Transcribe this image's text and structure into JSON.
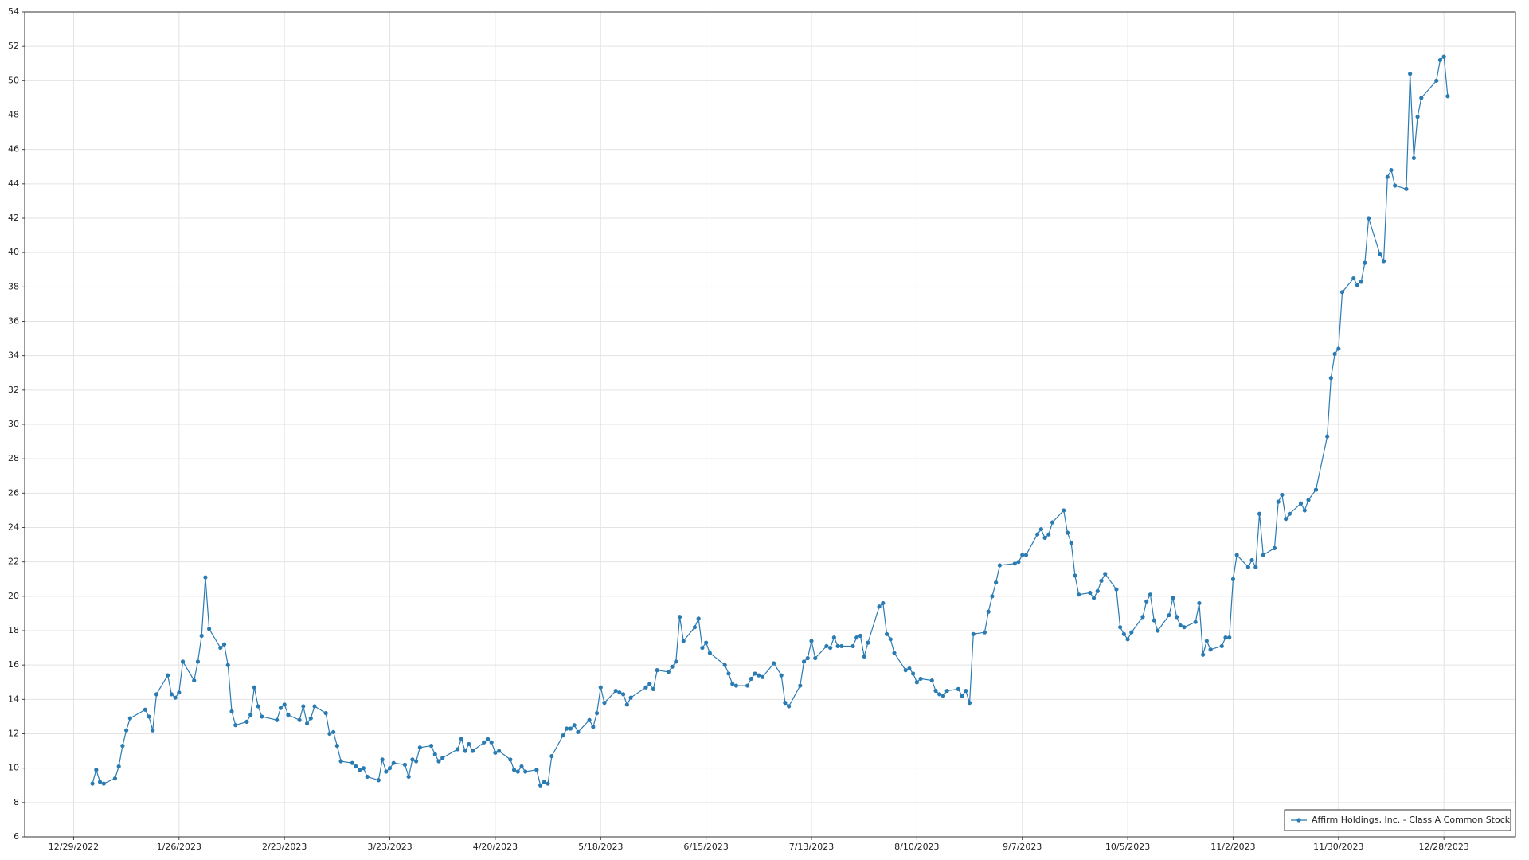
{
  "chart_data": {
    "type": "line",
    "x": [
      "2023-01-03",
      "2023-01-04",
      "2023-01-05",
      "2023-01-06",
      "2023-01-09",
      "2023-01-10",
      "2023-01-11",
      "2023-01-12",
      "2023-01-13",
      "2023-01-17",
      "2023-01-18",
      "2023-01-19",
      "2023-01-20",
      "2023-01-23",
      "2023-01-24",
      "2023-01-25",
      "2023-01-26",
      "2023-01-27",
      "2023-01-30",
      "2023-01-31",
      "2023-02-01",
      "2023-02-02",
      "2023-02-03",
      "2023-02-06",
      "2023-02-07",
      "2023-02-08",
      "2023-02-09",
      "2023-02-10",
      "2023-02-13",
      "2023-02-14",
      "2023-02-15",
      "2023-02-16",
      "2023-02-17",
      "2023-02-21",
      "2023-02-22",
      "2023-02-23",
      "2023-02-24",
      "2023-02-27",
      "2023-02-28",
      "2023-03-01",
      "2023-03-02",
      "2023-03-03",
      "2023-03-06",
      "2023-03-07",
      "2023-03-08",
      "2023-03-09",
      "2023-03-10",
      "2023-03-13",
      "2023-03-14",
      "2023-03-15",
      "2023-03-16",
      "2023-03-17",
      "2023-03-20",
      "2023-03-21",
      "2023-03-22",
      "2023-03-23",
      "2023-03-24",
      "2023-03-27",
      "2023-03-28",
      "2023-03-29",
      "2023-03-30",
      "2023-03-31",
      "2023-04-03",
      "2023-04-04",
      "2023-04-05",
      "2023-04-06",
      "2023-04-10",
      "2023-04-11",
      "2023-04-12",
      "2023-04-13",
      "2023-04-14",
      "2023-04-17",
      "2023-04-18",
      "2023-04-19",
      "2023-04-20",
      "2023-04-21",
      "2023-04-24",
      "2023-04-25",
      "2023-04-26",
      "2023-04-27",
      "2023-04-28",
      "2023-05-01",
      "2023-05-02",
      "2023-05-03",
      "2023-05-04",
      "2023-05-05",
      "2023-05-08",
      "2023-05-09",
      "2023-05-10",
      "2023-05-11",
      "2023-05-12",
      "2023-05-15",
      "2023-05-16",
      "2023-05-17",
      "2023-05-18",
      "2023-05-19",
      "2023-05-22",
      "2023-05-23",
      "2023-05-24",
      "2023-05-25",
      "2023-05-26",
      "2023-05-30",
      "2023-05-31",
      "2023-06-01",
      "2023-06-02",
      "2023-06-05",
      "2023-06-06",
      "2023-06-07",
      "2023-06-08",
      "2023-06-09",
      "2023-06-12",
      "2023-06-13",
      "2023-06-14",
      "2023-06-15",
      "2023-06-16",
      "2023-06-20",
      "2023-06-21",
      "2023-06-22",
      "2023-06-23",
      "2023-06-26",
      "2023-06-27",
      "2023-06-28",
      "2023-06-29",
      "2023-06-30",
      "2023-07-03",
      "2023-07-05",
      "2023-07-06",
      "2023-07-07",
      "2023-07-10",
      "2023-07-11",
      "2023-07-12",
      "2023-07-13",
      "2023-07-14",
      "2023-07-17",
      "2023-07-18",
      "2023-07-19",
      "2023-07-20",
      "2023-07-21",
      "2023-07-24",
      "2023-07-25",
      "2023-07-26",
      "2023-07-27",
      "2023-07-28",
      "2023-07-31",
      "2023-08-01",
      "2023-08-02",
      "2023-08-03",
      "2023-08-04",
      "2023-08-07",
      "2023-08-08",
      "2023-08-09",
      "2023-08-10",
      "2023-08-11",
      "2023-08-14",
      "2023-08-15",
      "2023-08-16",
      "2023-08-17",
      "2023-08-18",
      "2023-08-21",
      "2023-08-22",
      "2023-08-23",
      "2023-08-24",
      "2023-08-25",
      "2023-08-28",
      "2023-08-29",
      "2023-08-30",
      "2023-08-31",
      "2023-09-01",
      "2023-09-05",
      "2023-09-06",
      "2023-09-07",
      "2023-09-08",
      "2023-09-11",
      "2023-09-12",
      "2023-09-13",
      "2023-09-14",
      "2023-09-15",
      "2023-09-18",
      "2023-09-19",
      "2023-09-20",
      "2023-09-21",
      "2023-09-22",
      "2023-09-25",
      "2023-09-26",
      "2023-09-27",
      "2023-09-28",
      "2023-09-29",
      "2023-10-02",
      "2023-10-03",
      "2023-10-04",
      "2023-10-05",
      "2023-10-06",
      "2023-10-09",
      "2023-10-10",
      "2023-10-11",
      "2023-10-12",
      "2023-10-13",
      "2023-10-16",
      "2023-10-17",
      "2023-10-18",
      "2023-10-19",
      "2023-10-20",
      "2023-10-23",
      "2023-10-24",
      "2023-10-25",
      "2023-10-26",
      "2023-10-27",
      "2023-10-30",
      "2023-10-31",
      "2023-11-01",
      "2023-11-02",
      "2023-11-03",
      "2023-11-06",
      "2023-11-07",
      "2023-11-08",
      "2023-11-09",
      "2023-11-10",
      "2023-11-13",
      "2023-11-14",
      "2023-11-15",
      "2023-11-16",
      "2023-11-17",
      "2023-11-20",
      "2023-11-21",
      "2023-11-22",
      "2023-11-24",
      "2023-11-27",
      "2023-11-28",
      "2023-11-29",
      "2023-11-30",
      "2023-12-01",
      "2023-12-04",
      "2023-12-05",
      "2023-12-06",
      "2023-12-07",
      "2023-12-08",
      "2023-12-11",
      "2023-12-12",
      "2023-12-13",
      "2023-12-14",
      "2023-12-15",
      "2023-12-18",
      "2023-12-19",
      "2023-12-20",
      "2023-12-21",
      "2023-12-22",
      "2023-12-26",
      "2023-12-27",
      "2023-12-28",
      "2023-12-29"
    ],
    "series": [
      {
        "name": "Affirm Holdings, Inc. - Class A Common Stock",
        "color": "#2b7bb3",
        "values": [
          9.1,
          9.9,
          9.2,
          9.1,
          9.4,
          10.1,
          11.3,
          12.2,
          12.9,
          13.4,
          13.0,
          12.2,
          14.3,
          15.4,
          14.3,
          14.1,
          14.4,
          16.2,
          15.1,
          16.2,
          17.7,
          21.1,
          18.1,
          17.0,
          17.2,
          16.0,
          13.3,
          12.5,
          12.7,
          13.1,
          14.7,
          13.6,
          13.0,
          12.8,
          13.5,
          13.7,
          13.1,
          12.8,
          13.6,
          12.6,
          12.9,
          13.6,
          13.2,
          12.0,
          12.1,
          11.3,
          10.4,
          10.3,
          10.1,
          9.9,
          10.0,
          9.5,
          9.3,
          10.5,
          9.8,
          10.0,
          10.3,
          10.2,
          9.5,
          10.5,
          10.4,
          11.2,
          11.3,
          10.8,
          10.4,
          10.6,
          11.1,
          11.7,
          11.0,
          11.4,
          11.0,
          11.5,
          11.7,
          11.5,
          10.9,
          11.0,
          10.5,
          9.9,
          9.8,
          10.1,
          9.8,
          9.9,
          9.0,
          9.2,
          9.1,
          10.7,
          11.9,
          12.3,
          12.3,
          12.5,
          12.1,
          12.8,
          12.4,
          13.2,
          14.7,
          13.8,
          14.5,
          14.4,
          14.3,
          13.7,
          14.1,
          14.7,
          14.9,
          14.6,
          15.7,
          15.6,
          15.9,
          16.2,
          18.8,
          17.4,
          18.2,
          18.7,
          17.0,
          17.3,
          16.7,
          16.0,
          15.5,
          14.9,
          14.8,
          14.8,
          15.2,
          15.5,
          15.4,
          15.3,
          16.1,
          15.4,
          13.8,
          13.6,
          14.8,
          16.2,
          16.4,
          17.4,
          16.4,
          17.1,
          17.0,
          17.6,
          17.1,
          17.1,
          17.1,
          17.6,
          17.7,
          16.5,
          17.3,
          19.4,
          19.6,
          17.8,
          17.5,
          16.7,
          15.7,
          15.8,
          15.5,
          15.0,
          15.2,
          15.1,
          14.5,
          14.3,
          14.2,
          14.5,
          14.6,
          14.2,
          14.5,
          13.8,
          17.8,
          17.9,
          19.1,
          20.0,
          20.8,
          21.8,
          21.9,
          22.0,
          22.4,
          22.4,
          23.6,
          23.9,
          23.4,
          23.6,
          24.3,
          25.0,
          23.7,
          23.1,
          21.2,
          20.1,
          20.2,
          19.9,
          20.3,
          20.9,
          21.3,
          20.4,
          18.2,
          17.8,
          17.5,
          17.9,
          18.8,
          19.7,
          20.1,
          18.6,
          18.0,
          18.9,
          19.9,
          18.8,
          18.3,
          18.2,
          18.5,
          19.6,
          16.6,
          17.4,
          16.9,
          17.1,
          17.6,
          17.6,
          21.0,
          22.4,
          21.7,
          22.1,
          21.7,
          24.8,
          22.4,
          22.8,
          25.5,
          25.9,
          24.5,
          24.8,
          25.4,
          25.0,
          25.6,
          26.2,
          29.3,
          32.7,
          34.1,
          34.4,
          37.7,
          38.5,
          38.1,
          38.3,
          39.4,
          42.0,
          39.9,
          39.5,
          44.4,
          44.8,
          43.9,
          43.7,
          50.4,
          45.5,
          47.9,
          49.0,
          50.0,
          51.2,
          51.4,
          49.1
        ]
      }
    ],
    "xlim": [
      "2022-12-16",
      "2024-01-16"
    ],
    "xticks": [
      {
        "value": "2022-12-29",
        "label": "12/29/2022"
      },
      {
        "value": "2023-01-26",
        "label": "1/26/2023"
      },
      {
        "value": "2023-02-23",
        "label": "2/23/2023"
      },
      {
        "value": "2023-03-23",
        "label": "3/23/2023"
      },
      {
        "value": "2023-04-20",
        "label": "4/20/2023"
      },
      {
        "value": "2023-05-18",
        "label": "5/18/2023"
      },
      {
        "value": "2023-06-15",
        "label": "6/15/2023"
      },
      {
        "value": "2023-07-13",
        "label": "7/13/2023"
      },
      {
        "value": "2023-08-10",
        "label": "8/10/2023"
      },
      {
        "value": "2023-09-07",
        "label": "9/7/2023"
      },
      {
        "value": "2023-10-05",
        "label": "10/5/2023"
      },
      {
        "value": "2023-11-02",
        "label": "11/2/2023"
      },
      {
        "value": "2023-11-30",
        "label": "11/30/2023"
      },
      {
        "value": "2023-12-28",
        "label": "12/28/2023"
      }
    ],
    "ylim": [
      6,
      54
    ],
    "yticks": [
      6,
      8,
      10,
      12,
      14,
      16,
      18,
      20,
      22,
      24,
      26,
      28,
      30,
      32,
      34,
      36,
      38,
      40,
      42,
      44,
      46,
      48,
      50,
      52,
      54
    ],
    "grid": true,
    "legend": "lower right"
  }
}
